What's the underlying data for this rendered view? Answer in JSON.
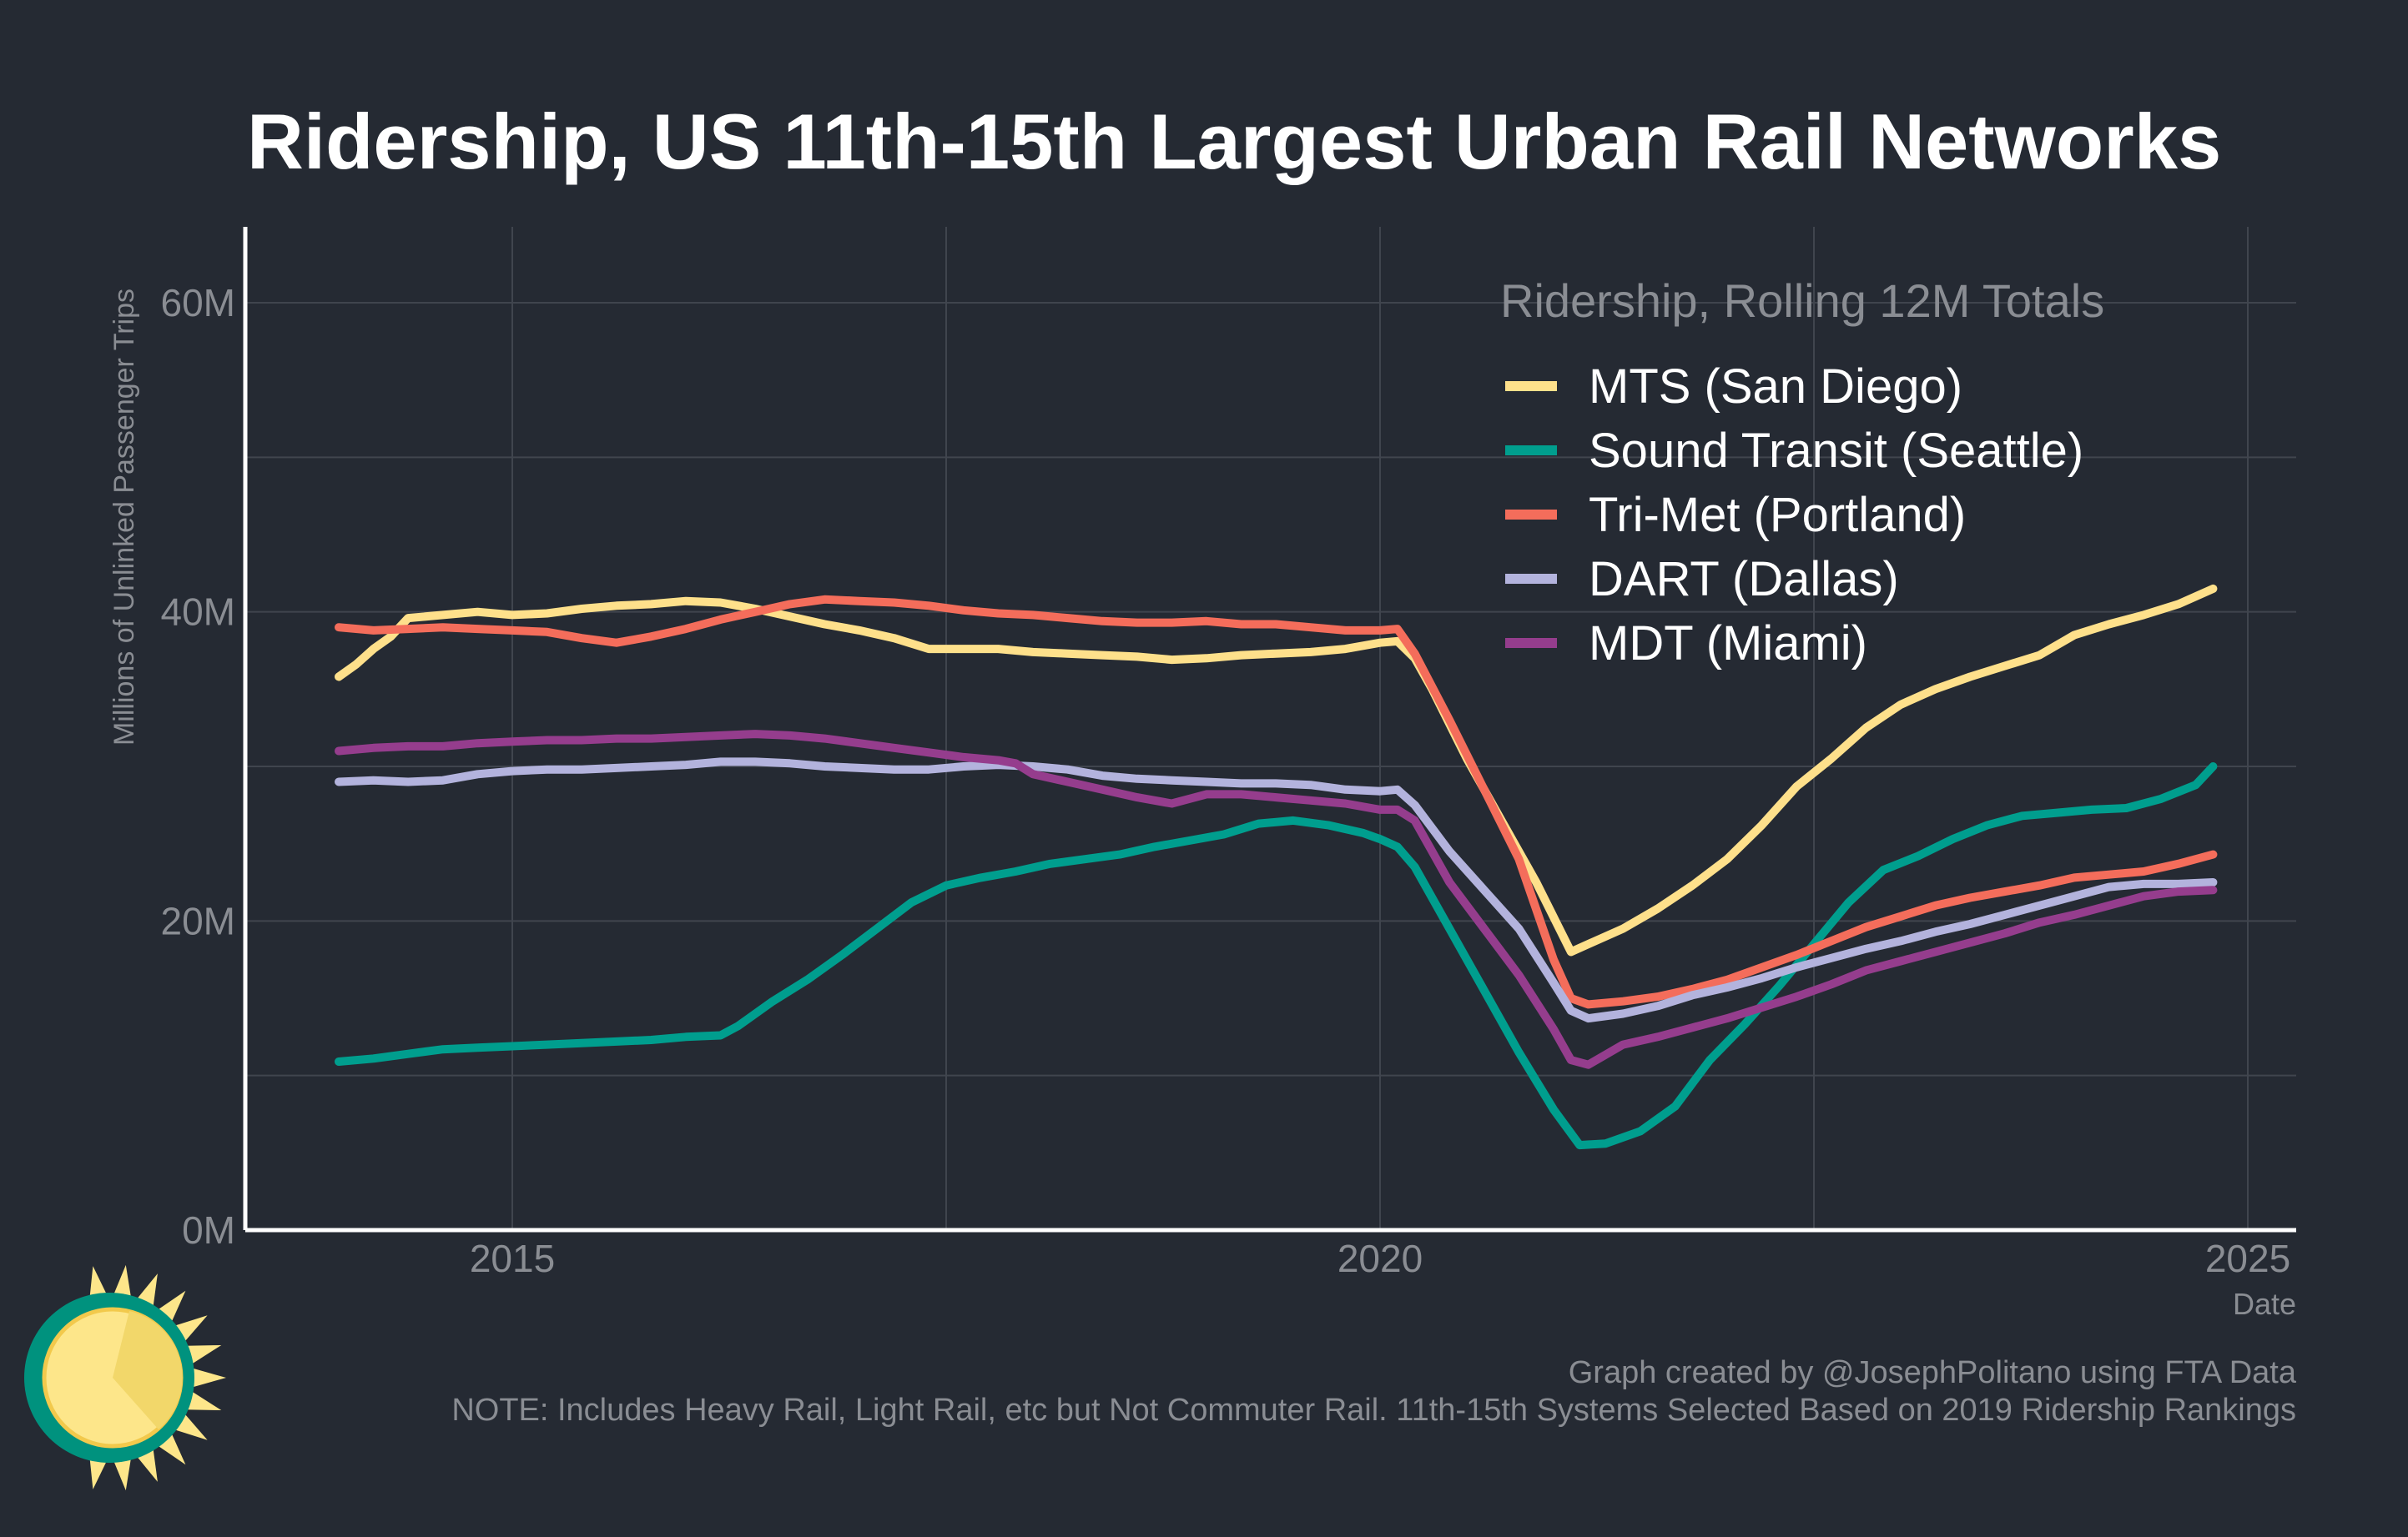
{
  "chart_data": {
    "type": "line",
    "title": "Ridership, US 11th-15th Largest Urban Rail Networks",
    "xlabel": "Date",
    "ylabel": "Millions of Unlinked Passenger Trips",
    "xlim": [
      2013.5,
      2025.3
    ],
    "ylim": [
      0,
      65
    ],
    "x_ticks": [
      2015,
      2020,
      2025
    ],
    "x_tick_labels": [
      "2015",
      "2020",
      "2025"
    ],
    "y_ticks": [
      0,
      20,
      40,
      60
    ],
    "y_tick_labels": [
      "0M",
      "20M",
      "40M",
      "60M"
    ],
    "grid": true,
    "legend_title": "Ridership, Rolling 12M Totals",
    "legend_position": "top-right",
    "series": [
      {
        "name": "MTS (San Diego)",
        "color": "#fee08b",
        "points": [
          [
            2014.0,
            35.8
          ],
          [
            2014.1,
            36.6
          ],
          [
            2014.2,
            37.6
          ],
          [
            2014.3,
            38.4
          ],
          [
            2014.4,
            39.6
          ],
          [
            2014.6,
            39.8
          ],
          [
            2014.8,
            40.0
          ],
          [
            2015.0,
            39.8
          ],
          [
            2015.2,
            39.9
          ],
          [
            2015.4,
            40.2
          ],
          [
            2015.6,
            40.4
          ],
          [
            2015.8,
            40.5
          ],
          [
            2016.0,
            40.7
          ],
          [
            2016.2,
            40.6
          ],
          [
            2016.4,
            40.2
          ],
          [
            2016.6,
            39.7
          ],
          [
            2016.8,
            39.2
          ],
          [
            2017.0,
            38.8
          ],
          [
            2017.2,
            38.3
          ],
          [
            2017.4,
            37.6
          ],
          [
            2017.6,
            37.6
          ],
          [
            2017.8,
            37.6
          ],
          [
            2018.0,
            37.4
          ],
          [
            2018.2,
            37.3
          ],
          [
            2018.4,
            37.2
          ],
          [
            2018.6,
            37.1
          ],
          [
            2018.8,
            36.9
          ],
          [
            2019.0,
            37.0
          ],
          [
            2019.2,
            37.2
          ],
          [
            2019.4,
            37.3
          ],
          [
            2019.6,
            37.4
          ],
          [
            2019.8,
            37.6
          ],
          [
            2020.0,
            38.0
          ],
          [
            2020.1,
            38.1
          ],
          [
            2020.2,
            37.0
          ],
          [
            2020.3,
            35.0
          ],
          [
            2020.5,
            30.5
          ],
          [
            2020.7,
            26.5
          ],
          [
            2020.9,
            22.5
          ],
          [
            2021.1,
            18.0
          ],
          [
            2021.2,
            18.5
          ],
          [
            2021.4,
            19.5
          ],
          [
            2021.6,
            20.8
          ],
          [
            2021.8,
            22.3
          ],
          [
            2022.0,
            24.0
          ],
          [
            2022.2,
            26.2
          ],
          [
            2022.4,
            28.7
          ],
          [
            2022.6,
            30.5
          ],
          [
            2022.8,
            32.5
          ],
          [
            2023.0,
            34.0
          ],
          [
            2023.2,
            35.0
          ],
          [
            2023.4,
            35.8
          ],
          [
            2023.6,
            36.5
          ],
          [
            2023.8,
            37.2
          ],
          [
            2024.0,
            38.5
          ],
          [
            2024.2,
            39.2
          ],
          [
            2024.4,
            39.8
          ],
          [
            2024.6,
            40.5
          ],
          [
            2024.8,
            41.5
          ]
        ]
      },
      {
        "name": "Sound Transit (Seattle)",
        "color": "#009e8e",
        "points": [
          [
            2014.0,
            10.9
          ],
          [
            2014.2,
            11.1
          ],
          [
            2014.4,
            11.4
          ],
          [
            2014.6,
            11.7
          ],
          [
            2014.8,
            11.8
          ],
          [
            2015.0,
            11.9
          ],
          [
            2015.2,
            12.0
          ],
          [
            2015.4,
            12.1
          ],
          [
            2015.6,
            12.2
          ],
          [
            2015.8,
            12.3
          ],
          [
            2016.0,
            12.5
          ],
          [
            2016.2,
            12.6
          ],
          [
            2016.3,
            13.2
          ],
          [
            2016.5,
            14.8
          ],
          [
            2016.7,
            16.2
          ],
          [
            2016.9,
            17.8
          ],
          [
            2017.1,
            19.5
          ],
          [
            2017.3,
            21.2
          ],
          [
            2017.5,
            22.3
          ],
          [
            2017.7,
            22.8
          ],
          [
            2017.9,
            23.2
          ],
          [
            2018.1,
            23.7
          ],
          [
            2018.3,
            24.0
          ],
          [
            2018.5,
            24.3
          ],
          [
            2018.7,
            24.8
          ],
          [
            2018.9,
            25.2
          ],
          [
            2019.1,
            25.6
          ],
          [
            2019.3,
            26.3
          ],
          [
            2019.5,
            26.5
          ],
          [
            2019.7,
            26.2
          ],
          [
            2019.9,
            25.7
          ],
          [
            2020.0,
            25.3
          ],
          [
            2020.1,
            24.8
          ],
          [
            2020.2,
            23.5
          ],
          [
            2020.4,
            19.5
          ],
          [
            2020.6,
            15.5
          ],
          [
            2020.8,
            11.5
          ],
          [
            2021.0,
            7.8
          ],
          [
            2021.15,
            5.5
          ],
          [
            2021.3,
            5.6
          ],
          [
            2021.5,
            6.4
          ],
          [
            2021.7,
            8.0
          ],
          [
            2021.9,
            11.0
          ],
          [
            2022.1,
            13.3
          ],
          [
            2022.3,
            15.8
          ],
          [
            2022.5,
            18.5
          ],
          [
            2022.7,
            21.2
          ],
          [
            2022.9,
            23.3
          ],
          [
            2023.1,
            24.2
          ],
          [
            2023.3,
            25.3
          ],
          [
            2023.5,
            26.2
          ],
          [
            2023.7,
            26.8
          ],
          [
            2023.9,
            27.0
          ],
          [
            2024.1,
            27.2
          ],
          [
            2024.3,
            27.3
          ],
          [
            2024.5,
            27.9
          ],
          [
            2024.7,
            28.8
          ],
          [
            2024.8,
            30.0
          ]
        ]
      },
      {
        "name": "Tri-Met (Portland)",
        "color": "#f46d5b",
        "points": [
          [
            2014.0,
            39.0
          ],
          [
            2014.2,
            38.8
          ],
          [
            2014.4,
            38.9
          ],
          [
            2014.6,
            39.0
          ],
          [
            2014.8,
            38.9
          ],
          [
            2015.0,
            38.8
          ],
          [
            2015.2,
            38.7
          ],
          [
            2015.4,
            38.3
          ],
          [
            2015.6,
            38.0
          ],
          [
            2015.8,
            38.4
          ],
          [
            2016.0,
            38.9
          ],
          [
            2016.2,
            39.5
          ],
          [
            2016.4,
            40.0
          ],
          [
            2016.6,
            40.5
          ],
          [
            2016.8,
            40.8
          ],
          [
            2017.0,
            40.7
          ],
          [
            2017.2,
            40.6
          ],
          [
            2017.4,
            40.4
          ],
          [
            2017.6,
            40.1
          ],
          [
            2017.8,
            39.9
          ],
          [
            2018.0,
            39.8
          ],
          [
            2018.2,
            39.6
          ],
          [
            2018.4,
            39.4
          ],
          [
            2018.6,
            39.3
          ],
          [
            2018.8,
            39.3
          ],
          [
            2019.0,
            39.4
          ],
          [
            2019.2,
            39.2
          ],
          [
            2019.4,
            39.2
          ],
          [
            2019.6,
            39.0
          ],
          [
            2019.8,
            38.8
          ],
          [
            2020.0,
            38.8
          ],
          [
            2020.1,
            38.9
          ],
          [
            2020.2,
            37.3
          ],
          [
            2020.4,
            33.0
          ],
          [
            2020.6,
            28.5
          ],
          [
            2020.8,
            24.0
          ],
          [
            2021.0,
            17.5
          ],
          [
            2021.1,
            15.0
          ],
          [
            2021.2,
            14.6
          ],
          [
            2021.4,
            14.8
          ],
          [
            2021.6,
            15.1
          ],
          [
            2021.8,
            15.6
          ],
          [
            2022.0,
            16.2
          ],
          [
            2022.2,
            17.0
          ],
          [
            2022.4,
            17.8
          ],
          [
            2022.6,
            18.7
          ],
          [
            2022.8,
            19.6
          ],
          [
            2023.0,
            20.3
          ],
          [
            2023.2,
            21.0
          ],
          [
            2023.4,
            21.5
          ],
          [
            2023.6,
            21.9
          ],
          [
            2023.8,
            22.3
          ],
          [
            2024.0,
            22.8
          ],
          [
            2024.2,
            23.0
          ],
          [
            2024.4,
            23.2
          ],
          [
            2024.6,
            23.7
          ],
          [
            2024.8,
            24.3
          ]
        ]
      },
      {
        "name": "DART (Dallas)",
        "color": "#b3b3dd",
        "points": [
          [
            2014.0,
            29.0
          ],
          [
            2014.2,
            29.1
          ],
          [
            2014.4,
            29.0
          ],
          [
            2014.6,
            29.1
          ],
          [
            2014.8,
            29.5
          ],
          [
            2015.0,
            29.7
          ],
          [
            2015.2,
            29.8
          ],
          [
            2015.4,
            29.8
          ],
          [
            2015.6,
            29.9
          ],
          [
            2015.8,
            30.0
          ],
          [
            2016.0,
            30.1
          ],
          [
            2016.2,
            30.3
          ],
          [
            2016.4,
            30.3
          ],
          [
            2016.6,
            30.2
          ],
          [
            2016.8,
            30.0
          ],
          [
            2017.0,
            29.9
          ],
          [
            2017.2,
            29.8
          ],
          [
            2017.4,
            29.8
          ],
          [
            2017.6,
            30.0
          ],
          [
            2017.8,
            30.1
          ],
          [
            2018.0,
            30.0
          ],
          [
            2018.2,
            29.8
          ],
          [
            2018.4,
            29.4
          ],
          [
            2018.6,
            29.2
          ],
          [
            2018.8,
            29.1
          ],
          [
            2019.0,
            29.0
          ],
          [
            2019.2,
            28.9
          ],
          [
            2019.4,
            28.9
          ],
          [
            2019.6,
            28.8
          ],
          [
            2019.8,
            28.5
          ],
          [
            2020.0,
            28.4
          ],
          [
            2020.1,
            28.5
          ],
          [
            2020.2,
            27.5
          ],
          [
            2020.4,
            24.5
          ],
          [
            2020.6,
            22.0
          ],
          [
            2020.8,
            19.5
          ],
          [
            2021.0,
            16.0
          ],
          [
            2021.1,
            14.2
          ],
          [
            2021.2,
            13.7
          ],
          [
            2021.4,
            14.0
          ],
          [
            2021.6,
            14.5
          ],
          [
            2021.8,
            15.2
          ],
          [
            2022.0,
            15.7
          ],
          [
            2022.2,
            16.3
          ],
          [
            2022.4,
            17.0
          ],
          [
            2022.6,
            17.6
          ],
          [
            2022.8,
            18.2
          ],
          [
            2023.0,
            18.7
          ],
          [
            2023.2,
            19.3
          ],
          [
            2023.4,
            19.8
          ],
          [
            2023.6,
            20.4
          ],
          [
            2023.8,
            21.0
          ],
          [
            2024.0,
            21.6
          ],
          [
            2024.2,
            22.2
          ],
          [
            2024.4,
            22.4
          ],
          [
            2024.6,
            22.4
          ],
          [
            2024.8,
            22.5
          ]
        ]
      },
      {
        "name": "MDT (Miami)",
        "color": "#953d8d",
        "points": [
          [
            2014.0,
            31.0
          ],
          [
            2014.2,
            31.2
          ],
          [
            2014.4,
            31.3
          ],
          [
            2014.6,
            31.3
          ],
          [
            2014.8,
            31.5
          ],
          [
            2015.0,
            31.6
          ],
          [
            2015.2,
            31.7
          ],
          [
            2015.4,
            31.7
          ],
          [
            2015.6,
            31.8
          ],
          [
            2015.8,
            31.8
          ],
          [
            2016.0,
            31.9
          ],
          [
            2016.2,
            32.0
          ],
          [
            2016.4,
            32.1
          ],
          [
            2016.6,
            32.0
          ],
          [
            2016.8,
            31.8
          ],
          [
            2017.0,
            31.5
          ],
          [
            2017.2,
            31.2
          ],
          [
            2017.4,
            30.9
          ],
          [
            2017.6,
            30.6
          ],
          [
            2017.8,
            30.4
          ],
          [
            2017.9,
            30.2
          ],
          [
            2018.0,
            29.5
          ],
          [
            2018.2,
            29.0
          ],
          [
            2018.4,
            28.5
          ],
          [
            2018.6,
            28.0
          ],
          [
            2018.8,
            27.6
          ],
          [
            2019.0,
            28.2
          ],
          [
            2019.2,
            28.2
          ],
          [
            2019.4,
            28.0
          ],
          [
            2019.6,
            27.8
          ],
          [
            2019.8,
            27.6
          ],
          [
            2020.0,
            27.2
          ],
          [
            2020.1,
            27.2
          ],
          [
            2020.2,
            26.5
          ],
          [
            2020.4,
            22.5
          ],
          [
            2020.6,
            19.5
          ],
          [
            2020.8,
            16.5
          ],
          [
            2021.0,
            13.0
          ],
          [
            2021.1,
            11.0
          ],
          [
            2021.2,
            10.7
          ],
          [
            2021.4,
            12.0
          ],
          [
            2021.6,
            12.5
          ],
          [
            2021.8,
            13.1
          ],
          [
            2022.0,
            13.7
          ],
          [
            2022.2,
            14.4
          ],
          [
            2022.4,
            15.1
          ],
          [
            2022.6,
            15.9
          ],
          [
            2022.8,
            16.8
          ],
          [
            2023.0,
            17.4
          ],
          [
            2023.2,
            18.0
          ],
          [
            2023.4,
            18.6
          ],
          [
            2023.6,
            19.2
          ],
          [
            2023.8,
            19.9
          ],
          [
            2024.0,
            20.4
          ],
          [
            2024.2,
            21.0
          ],
          [
            2024.4,
            21.6
          ],
          [
            2024.6,
            21.9
          ],
          [
            2024.8,
            22.0
          ]
        ]
      }
    ],
    "footer": {
      "credit": "Graph created by @JosephPolitano using FTA Data",
      "note": "NOTE: Includes Heavy Rail, Light Rail, etc but Not Commuter Rail. 11th-15th Systems Selected Based on 2019 Ridership Rankings"
    },
    "logo": "sun-logo-icon"
  }
}
